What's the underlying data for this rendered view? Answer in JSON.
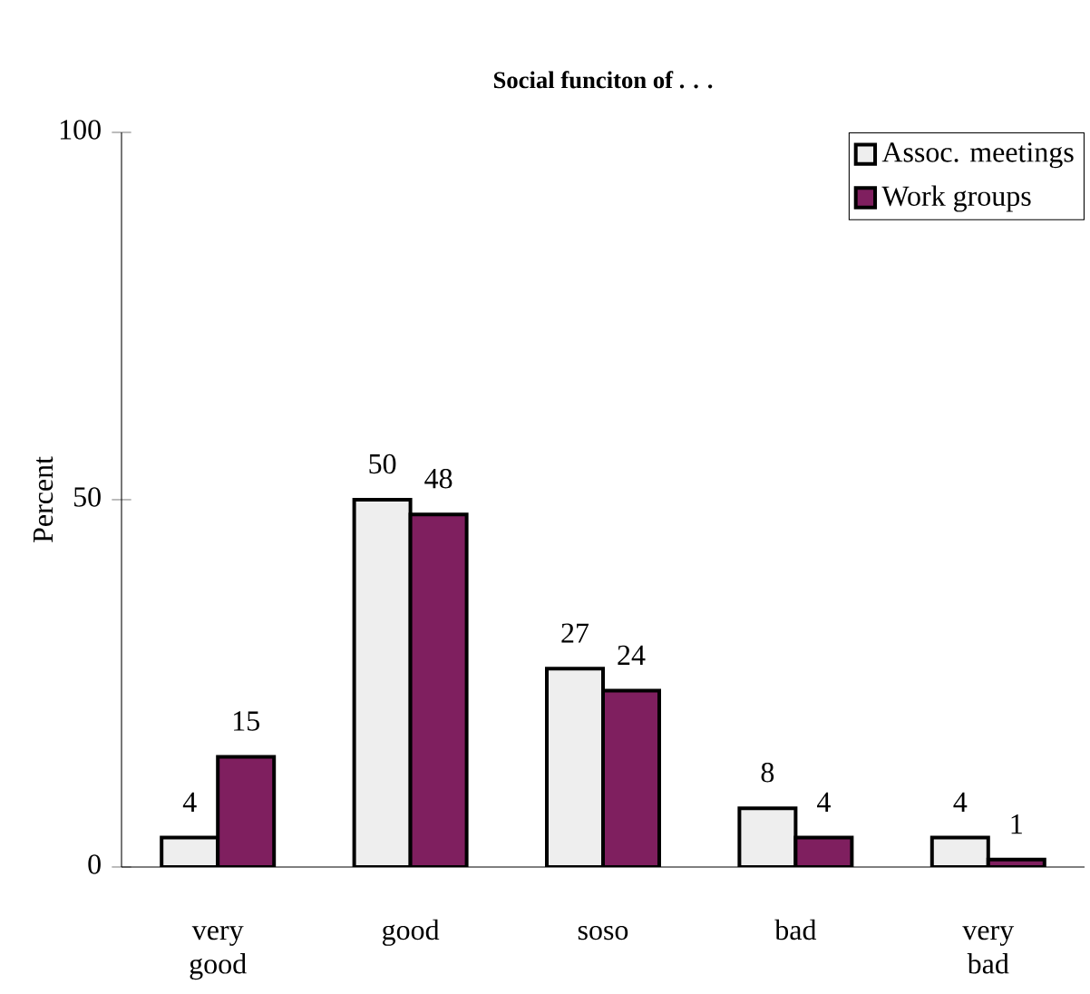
{
  "chart_data": {
    "type": "bar",
    "title": "**Social funciton of . . .**",
    "ylabel": "Percent",
    "categories": [
      "very good",
      "good",
      "soso",
      "bad",
      "very bad"
    ],
    "series": [
      {
        "name": "Assoc. meetings",
        "color": "#eeeeee",
        "values": [
          4,
          50,
          27,
          8,
          4
        ]
      },
      {
        "name": "Work groups",
        "color": "#7f1f5f",
        "values": [
          15,
          48,
          24,
          4,
          1
        ]
      }
    ],
    "ylim": [
      0,
      100
    ],
    "yticks": [
      0,
      50,
      100
    ],
    "data_labels": true,
    "legend": "top right",
    "grid": false
  }
}
